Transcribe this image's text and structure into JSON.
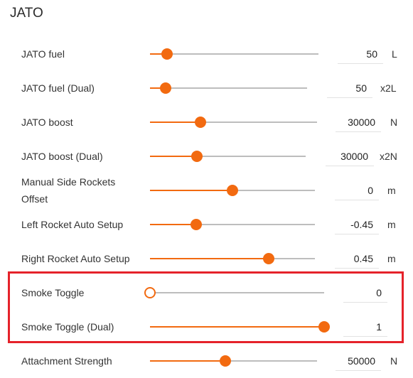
{
  "section_title": "JATO",
  "rows": [
    {
      "label": "JATO fuel",
      "value": "50",
      "unit": "L",
      "level": 0.1
    },
    {
      "label": "JATO fuel (Dual)",
      "value": "50",
      "unit": "x2L",
      "level": 0.1
    },
    {
      "label": "JATO boost",
      "value": "30000",
      "unit": "N",
      "level": 0.3
    },
    {
      "label": "JATO boost (Dual)",
      "value": "30000",
      "unit": "x2N",
      "level": 0.3
    },
    {
      "label": "Manual Side Rockets Offset",
      "label_line1": "Manual Side Rockets",
      "label_line2": "Offset",
      "value": "0",
      "unit": "m",
      "level": 0.5
    },
    {
      "label": "Left Rocket Auto Setup",
      "value": "-0.45",
      "unit": "m",
      "level": 0.28
    },
    {
      "label": "Right Rocket Auto Setup",
      "value": "0.45",
      "unit": "m",
      "level": 0.72
    },
    {
      "label": "Smoke Toggle",
      "value": "0",
      "unit": "",
      "level": 0.0
    },
    {
      "label": "Smoke Toggle (Dual)",
      "value": "1",
      "unit": "",
      "level": 1.0
    },
    {
      "label": "Attachment Strength",
      "value": "50000",
      "unit": "N",
      "level": 0.45
    }
  ],
  "colors": {
    "accent": "#f26a10",
    "track": "#bdbdbd",
    "highlight": "#e5222a"
  }
}
